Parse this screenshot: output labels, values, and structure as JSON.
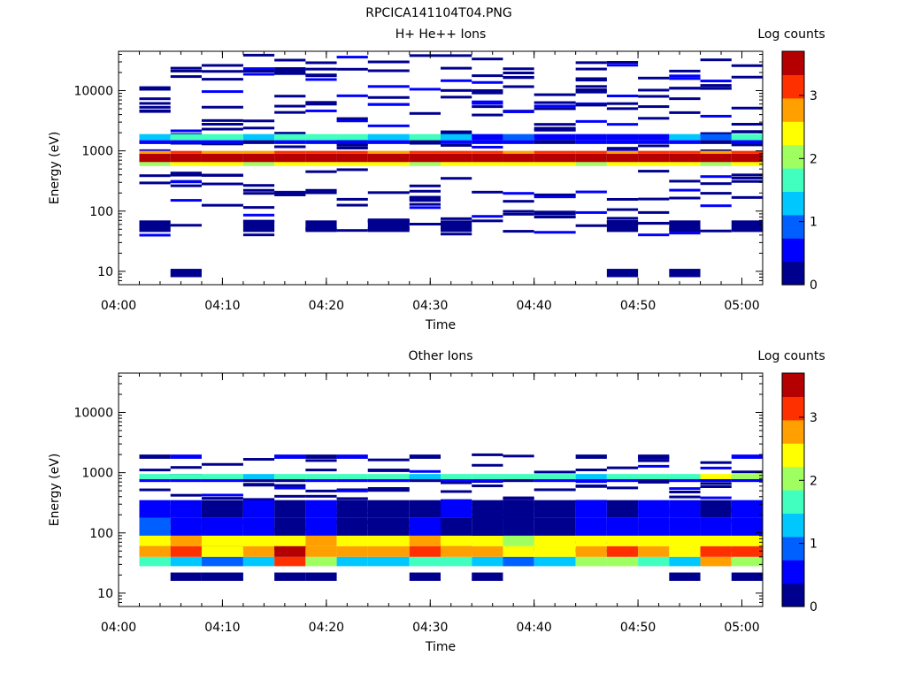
{
  "figure": {
    "title": "RPCICA141104T04.PNG"
  },
  "colormap": [
    "#00008f",
    "#0000ff",
    "#0060ff",
    "#00c8ff",
    "#40ffbf",
    "#a0ff60",
    "#ffff00",
    "#ffa000",
    "#ff3000",
    "#b40000"
  ],
  "chart_data": [
    {
      "type": "heatmap",
      "title": "H+ He++ Ions",
      "xlabel": "Time",
      "ylabel": "Energy (eV)",
      "colorbar_label": "Log counts",
      "colorbar_ticks": [
        0,
        1,
        2,
        3
      ],
      "colorbar_range": [
        0,
        3.7
      ],
      "yscale": "log",
      "ylim": [
        6,
        45000
      ],
      "y_ticks": [
        10,
        100,
        1000,
        10000
      ],
      "xlim": [
        "04:00",
        "05:02"
      ],
      "x_ticks": [
        "04:00",
        "04:10",
        "04:20",
        "04:30",
        "04:40",
        "04:50",
        "05:00"
      ],
      "time_bins": [
        "04:02",
        "04:05",
        "04:08",
        "04:12",
        "04:15",
        "04:18",
        "04:21",
        "04:24",
        "04:28",
        "04:31",
        "04:34",
        "04:37",
        "04:40",
        "04:44",
        "04:47",
        "04:50",
        "04:53",
        "04:56",
        "04:59",
        "05:02"
      ],
      "bands": [
        {
          "emin": 650,
          "emax": 900,
          "values": [
            3.5,
            3.6,
            3.4,
            3.5,
            3.6,
            3.5,
            3.6,
            3.5,
            3.4,
            3.6,
            3.5,
            3.6,
            3.5,
            3.4,
            3.6,
            3.5,
            3.6,
            3.5,
            3.6
          ]
        },
        {
          "emin": 900,
          "emax": 1000,
          "values": [
            2.8,
            3.0,
            2.9,
            2.9,
            3.1,
            3.0,
            3.0,
            2.9,
            3.0,
            3.0,
            3.1,
            2.9,
            3.0,
            3.0,
            2.9,
            3.0,
            3.0,
            2.9,
            3.0
          ]
        },
        {
          "emin": 560,
          "emax": 650,
          "values": [
            2.2,
            2.4,
            2.3,
            2.2,
            2.4,
            2.3,
            2.4,
            2.3,
            2.2,
            2.4,
            2.3,
            2.3,
            2.4,
            2.2,
            2.3,
            2.4,
            2.3,
            2.2,
            2.3
          ]
        },
        {
          "emin": 1500,
          "emax": 1900,
          "values": [
            1.4,
            1.8,
            1.6,
            1.3,
            1.5,
            1.7,
            1.5,
            1.4,
            1.6,
            1.3,
            0.6,
            0.8,
            0.5,
            0.7,
            0.5,
            0.6,
            1.3,
            0.8,
            1.8
          ]
        },
        {
          "emin": 1300,
          "emax": 1500,
          "values": [
            0.5,
            0.4,
            0.6,
            0.3,
            0.7,
            0.5,
            0.4,
            0.6,
            0.3,
            0.5,
            0.4,
            0.6,
            0.3,
            0.5,
            0.4,
            0.6,
            0.5,
            0.3,
            0.5
          ]
        },
        {
          "emin": 8,
          "emax": 11,
          "values": [
            0,
            0.1,
            0,
            0,
            0,
            0,
            0,
            0,
            0,
            0,
            0,
            0,
            0,
            0,
            0.1,
            0,
            0.1,
            0,
            0
          ]
        },
        {
          "emin": 45,
          "emax": 70,
          "values": [
            0.1,
            0,
            0,
            0.3,
            0,
            0.2,
            0,
            0.2,
            0,
            0.3,
            0,
            0,
            0,
            0,
            0.3,
            0,
            0.2,
            0,
            0.3
          ]
        }
      ]
    },
    {
      "type": "heatmap",
      "title": "Other Ions",
      "xlabel": "Time",
      "ylabel": "Energy (eV)",
      "colorbar_label": "Log counts",
      "colorbar_ticks": [
        0,
        1,
        2,
        3
      ],
      "colorbar_range": [
        0,
        3.7
      ],
      "yscale": "log",
      "ylim": [
        6,
        45000
      ],
      "y_ticks": [
        10,
        100,
        1000,
        10000
      ],
      "xlim": [
        "04:00",
        "05:02"
      ],
      "x_ticks": [
        "04:00",
        "04:10",
        "04:20",
        "04:30",
        "04:40",
        "04:50",
        "05:00"
      ],
      "time_bins": [
        "04:02",
        "04:05",
        "04:08",
        "04:12",
        "04:15",
        "04:18",
        "04:21",
        "04:24",
        "04:28",
        "04:31",
        "04:34",
        "04:37",
        "04:40",
        "04:44",
        "04:47",
        "04:50",
        "04:53",
        "04:56",
        "04:59",
        "05:02"
      ],
      "bands": [
        {
          "emin": 780,
          "emax": 950,
          "values": [
            1.6,
            1.5,
            1.7,
            1.4,
            1.5,
            1.8,
            1.6,
            1.5,
            1.4,
            1.6,
            1.7,
            1.5,
            1.6,
            1.4,
            1.5,
            1.6,
            1.8,
            2.3,
            2.0
          ]
        },
        {
          "emin": 700,
          "emax": 780,
          "values": [
            0.6,
            0.4,
            0.5,
            0.3,
            0.2,
            0.5,
            0.4,
            0.6,
            0.3,
            0.5,
            0.4,
            0.2,
            0.5,
            0.4,
            0.6,
            0.3,
            0.5,
            0.4,
            0.6
          ]
        },
        {
          "emin": 60,
          "emax": 90,
          "values": [
            2.4,
            2.6,
            2.3,
            2.5,
            2.4,
            2.7,
            2.5,
            2.3,
            2.6,
            2.5,
            2.4,
            2.2,
            2.3,
            2.4,
            2.5,
            2.4,
            2.3,
            2.4,
            2.5
          ]
        },
        {
          "emin": 40,
          "emax": 60,
          "values": [
            2.8,
            3.0,
            2.4,
            2.7,
            3.4,
            2.9,
            2.8,
            2.7,
            3.0,
            2.8,
            2.6,
            2.5,
            2.4,
            2.6,
            3.0,
            2.7,
            2.5,
            3.1,
            3.2
          ]
        },
        {
          "emin": 28,
          "emax": 40,
          "values": [
            1.6,
            1.3,
            0.8,
            1.2,
            3.0,
            2.0,
            1.4,
            1.3,
            1.6,
            1.5,
            1.2,
            1.0,
            1.3,
            2.0,
            2.2,
            1.5,
            1.4,
            2.6,
            2.2
          ]
        },
        {
          "emin": 90,
          "emax": 180,
          "values": [
            0.8,
            0.5,
            0.4,
            0.5,
            0.3,
            0.6,
            0.2,
            0.1,
            0.4,
            0.3,
            0.2,
            0.1,
            0.3,
            0.5,
            0.6,
            0.4,
            0.5,
            0.4,
            0.5
          ]
        },
        {
          "emin": 180,
          "emax": 350,
          "values": [
            0.7,
            0.4,
            0.3,
            0.5,
            0.2,
            0.5,
            0.1,
            0.2,
            0.3,
            0.4,
            0.1,
            0.1,
            0.2,
            0.4,
            0.3,
            0.5,
            0.4,
            0.3,
            0.5
          ]
        },
        {
          "emin": 16,
          "emax": 22,
          "values": [
            0,
            0.2,
            0.1,
            0,
            0.3,
            0.1,
            0,
            0,
            0.1,
            0,
            0.1,
            0,
            0,
            0,
            0,
            0,
            0.1,
            0,
            0.1
          ]
        },
        {
          "emin": 1700,
          "emax": 2000,
          "values": [
            0.1,
            0.4,
            0,
            0,
            0.5,
            0.3,
            0.4,
            0,
            0.3,
            0,
            0,
            0,
            0,
            0.2,
            0,
            0.2,
            0,
            0,
            0.5
          ]
        }
      ]
    }
  ]
}
